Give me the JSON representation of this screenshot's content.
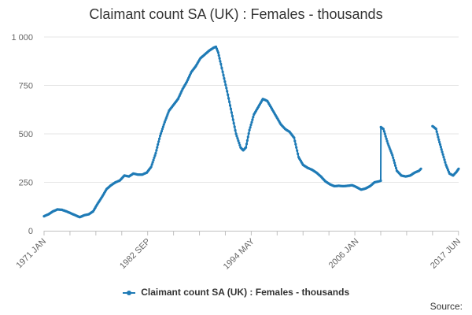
{
  "chart_data": {
    "type": "line",
    "title": "Claimant count SA (UK) : Females - thousands",
    "xlabel": "",
    "ylabel": "",
    "ylim": [
      0,
      1000
    ],
    "yticks": [
      0,
      250,
      500,
      750,
      1000
    ],
    "ytick_labels": [
      "0",
      "250",
      "500",
      "750",
      "1 000"
    ],
    "xlim": [
      1971.0,
      2017.42
    ],
    "xtick_labels": [
      "1971 JAN",
      "1982 SEP",
      "1994 MAY",
      "2006 JAN",
      "2017 JUN"
    ],
    "xtick_values": [
      1971.0,
      1982.67,
      1994.33,
      2006.0,
      2017.42
    ],
    "grid": "horizontal",
    "legend_position": "bottom",
    "series": [
      {
        "name": "Claimant count SA (UK) : Females - thousands",
        "color": "#1f7bb6",
        "segments": [
          [
            [
              1971.0,
              75
            ],
            [
              1971.5,
              85
            ],
            [
              1972.0,
              100
            ],
            [
              1972.5,
              110
            ],
            [
              1973.0,
              108
            ],
            [
              1973.5,
              100
            ],
            [
              1974.0,
              90
            ],
            [
              1974.5,
              80
            ],
            [
              1975.0,
              70
            ],
            [
              1975.5,
              80
            ],
            [
              1976.0,
              85
            ],
            [
              1976.5,
              100
            ],
            [
              1977.0,
              140
            ],
            [
              1977.5,
              175
            ],
            [
              1978.0,
              215
            ],
            [
              1978.5,
              235
            ],
            [
              1979.0,
              250
            ],
            [
              1979.5,
              260
            ],
            [
              1980.0,
              285
            ],
            [
              1980.5,
              280
            ],
            [
              1981.0,
              295
            ],
            [
              1981.5,
              290
            ],
            [
              1982.0,
              290
            ],
            [
              1982.5,
              300
            ],
            [
              1983.0,
              330
            ],
            [
              1983.5,
              400
            ],
            [
              1984.0,
              490
            ],
            [
              1984.5,
              560
            ],
            [
              1985.0,
              620
            ],
            [
              1985.5,
              650
            ],
            [
              1986.0,
              680
            ],
            [
              1986.5,
              730
            ],
            [
              1987.0,
              770
            ],
            [
              1987.5,
              820
            ],
            [
              1988.0,
              850
            ],
            [
              1988.5,
              890
            ],
            [
              1989.0,
              910
            ],
            [
              1989.5,
              930
            ],
            [
              1990.0,
              945
            ],
            [
              1990.25,
              950
            ],
            [
              1990.5,
              920
            ],
            [
              1990.8,
              860
            ],
            [
              1991.0,
              820
            ],
            [
              1991.5,
              720
            ],
            [
              1992.0,
              610
            ],
            [
              1992.5,
              500
            ],
            [
              1993.0,
              430
            ],
            [
              1993.3,
              415
            ],
            [
              1993.6,
              430
            ],
            [
              1994.0,
              520
            ],
            [
              1994.5,
              600
            ],
            [
              1995.0,
              640
            ],
            [
              1995.5,
              680
            ],
            [
              1996.0,
              670
            ],
            [
              1996.5,
              630
            ],
            [
              1997.0,
              590
            ],
            [
              1997.5,
              550
            ],
            [
              1998.0,
              525
            ],
            [
              1998.5,
              510
            ],
            [
              1999.0,
              480
            ],
            [
              1999.5,
              380
            ],
            [
              2000.0,
              340
            ],
            [
              2000.5,
              325
            ],
            [
              2001.0,
              315
            ],
            [
              2001.5,
              300
            ],
            [
              2002.0,
              280
            ],
            [
              2002.5,
              255
            ],
            [
              2003.0,
              240
            ],
            [
              2003.5,
              230
            ],
            [
              2004.0,
              232
            ],
            [
              2004.5,
              230
            ],
            [
              2005.0,
              232
            ],
            [
              2005.5,
              235
            ],
            [
              2006.0,
              225
            ],
            [
              2006.5,
              212
            ],
            [
              2007.0,
              218
            ],
            [
              2007.5,
              230
            ],
            [
              2008.0,
              250
            ],
            [
              2008.5,
              255
            ],
            [
              2008.7,
              258
            ],
            [
              2008.72,
              535
            ],
            [
              2009.0,
              525
            ],
            [
              2009.5,
              450
            ],
            [
              2010.0,
              390
            ],
            [
              2010.5,
              310
            ],
            [
              2011.0,
              285
            ],
            [
              2011.5,
              280
            ],
            [
              2012.0,
              285
            ],
            [
              2012.5,
              300
            ],
            [
              2013.0,
              310
            ],
            [
              2013.2,
              320
            ]
          ],
          [
            [
              2014.5,
              540
            ],
            [
              2014.9,
              525
            ],
            [
              2015.2,
              470
            ],
            [
              2015.5,
              420
            ],
            [
              2016.0,
              340
            ],
            [
              2016.4,
              295
            ],
            [
              2016.8,
              285
            ],
            [
              2017.0,
              295
            ],
            [
              2017.2,
              305
            ],
            [
              2017.42,
              320
            ]
          ]
        ]
      }
    ]
  },
  "legend": {
    "label": "Claimant count SA (UK) : Females - thousands"
  },
  "source": {
    "label": "Source:"
  }
}
